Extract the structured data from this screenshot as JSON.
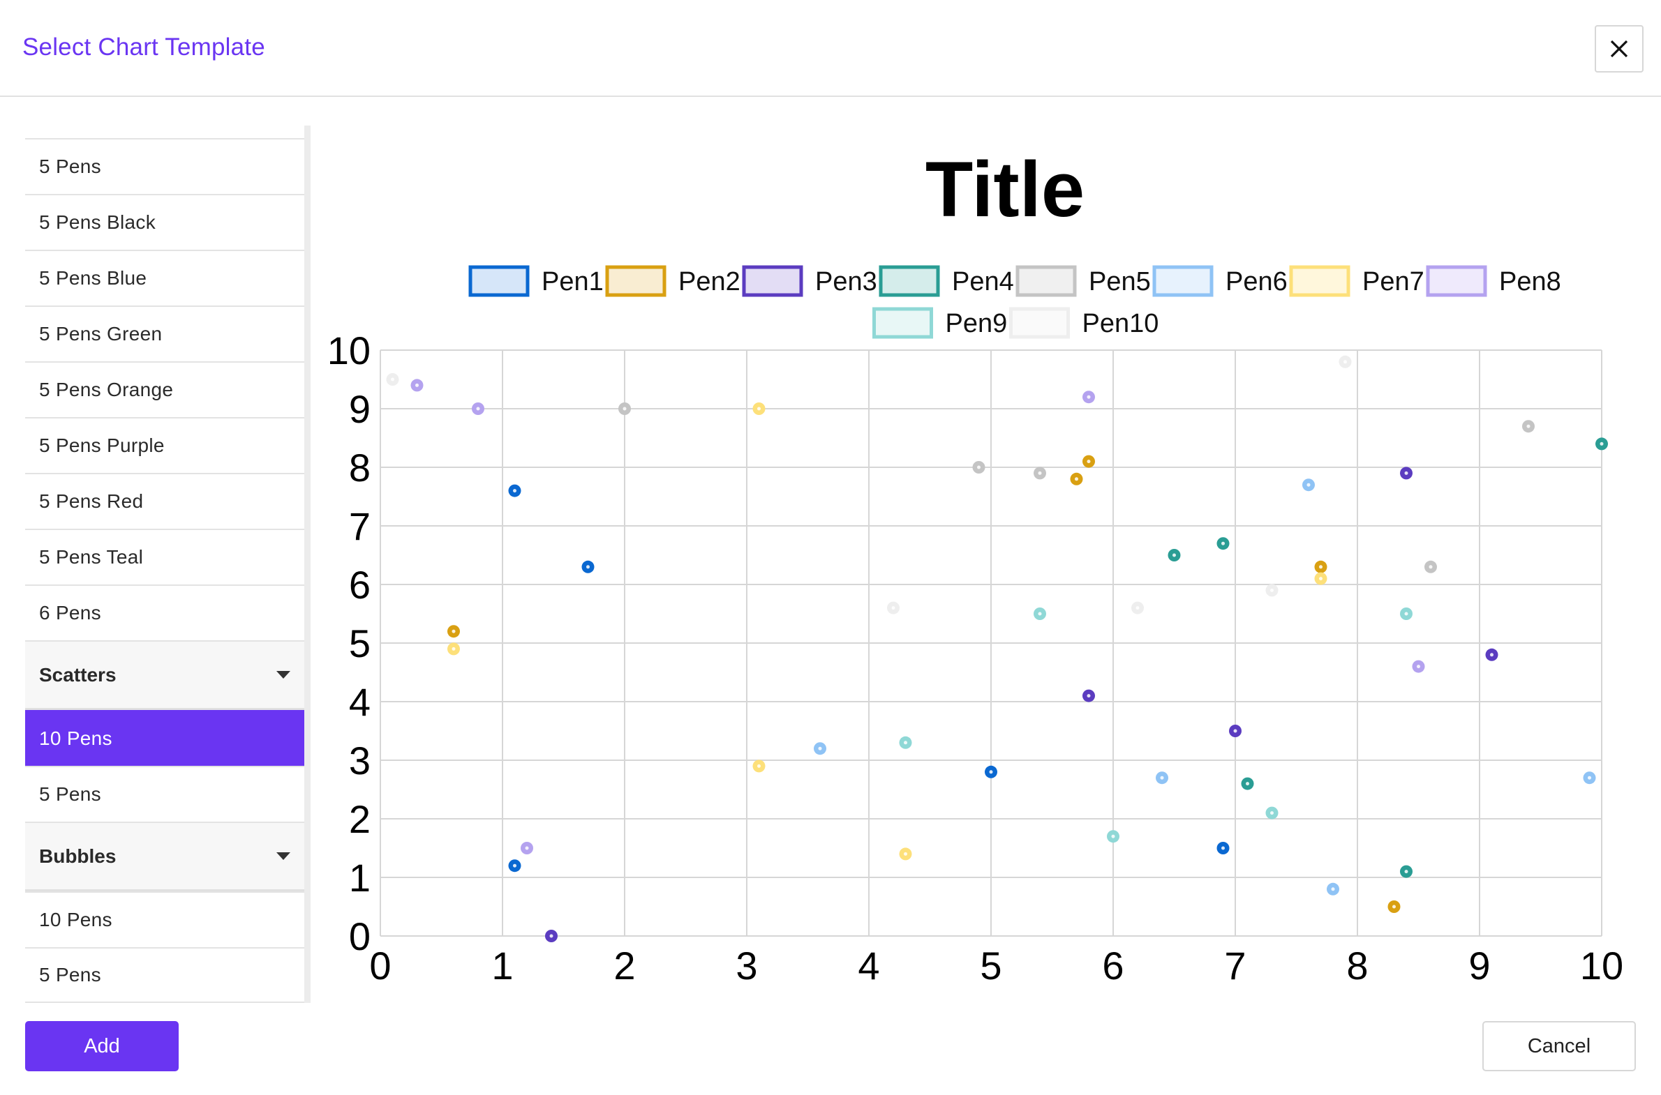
{
  "dialog": {
    "title": "Select Chart Template",
    "add_label": "Add",
    "cancel_label": "Cancel",
    "close_icon": "close-icon"
  },
  "sidebar": {
    "top_items": [
      {
        "label": "5 Pens"
      },
      {
        "label": "5 Pens Black"
      },
      {
        "label": "5 Pens Blue"
      },
      {
        "label": "5 Pens Green"
      },
      {
        "label": "5 Pens Orange"
      },
      {
        "label": "5 Pens Purple"
      },
      {
        "label": "5 Pens Red"
      },
      {
        "label": "5 Pens Teal"
      },
      {
        "label": "6 Pens"
      }
    ],
    "groups": [
      {
        "label": "Scatters",
        "icon": "caret-down-icon",
        "items": [
          {
            "label": "10 Pens",
            "selected": true
          },
          {
            "label": "5 Pens",
            "selected": false
          }
        ]
      },
      {
        "label": "Bubbles",
        "icon": "caret-down-icon",
        "items": [
          {
            "label": "10 Pens",
            "selected": false
          },
          {
            "label": "5 Pens",
            "selected": false
          }
        ]
      }
    ]
  },
  "colors": {
    "accent": "#6a35f2",
    "pens": [
      "#0a68d1",
      "#d9a012",
      "#5b3cc0",
      "#2a9d94",
      "#c4c4c4",
      "#8fc3f5",
      "#fde07a",
      "#b4a2ef",
      "#8fd8d6",
      "#eeeeee"
    ],
    "pen_fills": [
      "#d6e6f9",
      "#f9edd2",
      "#e3ddf5",
      "#d5edeb",
      "#f0f0f0",
      "#e7f2fd",
      "#fff7dc",
      "#efeafc",
      "#e8f7f6",
      "#fafafa"
    ]
  },
  "chart_data": {
    "type": "scatter",
    "title": "Title",
    "xlabel": "",
    "ylabel": "",
    "xlim": [
      0,
      10
    ],
    "ylim": [
      0,
      10
    ],
    "x_ticks": [
      "0",
      "1",
      "2",
      "3",
      "4",
      "5",
      "6",
      "7",
      "8",
      "9",
      "10"
    ],
    "y_ticks": [
      "0",
      "1",
      "2",
      "3",
      "4",
      "5",
      "6",
      "7",
      "8",
      "9",
      "10"
    ],
    "grid": true,
    "legend": "top",
    "series": [
      {
        "name": "Pen1",
        "points": [
          [
            1.1,
            7.6
          ],
          [
            1.7,
            6.3
          ],
          [
            5.0,
            2.8
          ],
          [
            1.1,
            1.2
          ],
          [
            6.9,
            1.5
          ]
        ]
      },
      {
        "name": "Pen2",
        "points": [
          [
            0.6,
            5.2
          ],
          [
            5.8,
            8.1
          ],
          [
            5.7,
            7.8
          ],
          [
            7.7,
            6.3
          ],
          [
            8.3,
            0.5
          ]
        ]
      },
      {
        "name": "Pen3",
        "points": [
          [
            1.4,
            0.0
          ],
          [
            5.8,
            4.1
          ],
          [
            7.0,
            3.5
          ],
          [
            8.4,
            7.9
          ],
          [
            9.1,
            4.8
          ]
        ]
      },
      {
        "name": "Pen4",
        "points": [
          [
            6.5,
            6.5
          ],
          [
            6.9,
            6.7
          ],
          [
            7.1,
            2.6
          ],
          [
            8.4,
            1.1
          ],
          [
            10.0,
            8.4
          ]
        ]
      },
      {
        "name": "Pen5",
        "points": [
          [
            2.0,
            9.0
          ],
          [
            4.9,
            8.0
          ],
          [
            5.4,
            7.9
          ],
          [
            8.6,
            6.3
          ],
          [
            9.4,
            8.7
          ]
        ]
      },
      {
        "name": "Pen6",
        "points": [
          [
            3.6,
            3.2
          ],
          [
            6.4,
            2.7
          ],
          [
            7.6,
            7.7
          ],
          [
            7.8,
            0.8
          ],
          [
            9.9,
            2.7
          ]
        ]
      },
      {
        "name": "Pen7",
        "points": [
          [
            0.6,
            4.9
          ],
          [
            3.1,
            9.0
          ],
          [
            3.1,
            2.9
          ],
          [
            4.3,
            1.4
          ],
          [
            7.7,
            6.1
          ]
        ]
      },
      {
        "name": "Pen8",
        "points": [
          [
            0.3,
            9.4
          ],
          [
            0.8,
            9.0
          ],
          [
            1.2,
            1.5
          ],
          [
            5.8,
            9.2
          ],
          [
            8.5,
            4.6
          ]
        ]
      },
      {
        "name": "Pen9",
        "points": [
          [
            4.3,
            3.3
          ],
          [
            5.4,
            5.5
          ],
          [
            6.0,
            1.7
          ],
          [
            7.3,
            2.1
          ],
          [
            8.4,
            5.5
          ]
        ]
      },
      {
        "name": "Pen10",
        "points": [
          [
            0.1,
            9.5
          ],
          [
            4.2,
            5.6
          ],
          [
            6.2,
            5.6
          ],
          [
            7.3,
            5.9
          ],
          [
            7.9,
            9.8
          ]
        ]
      }
    ]
  }
}
